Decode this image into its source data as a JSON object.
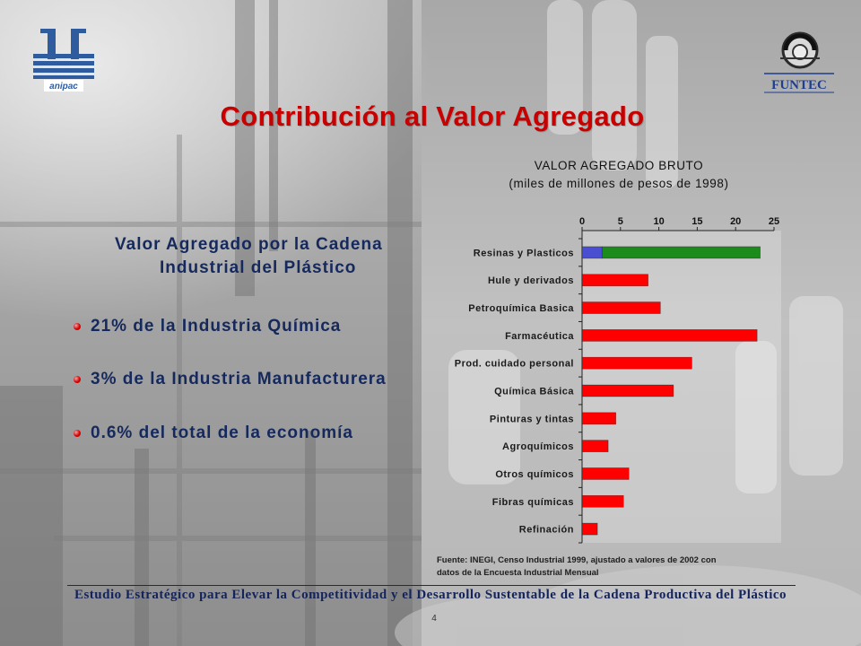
{
  "slide": {
    "title": "Contribución al Valor Agregado",
    "footer": "Estudio Estratégico para Elevar la Competitividad y el Desarrollo Sustentable de la Cadena Productiva del Plástico",
    "page_number": "4"
  },
  "logos": {
    "left": "anipac",
    "right": "FUNTEC"
  },
  "summary": {
    "heading": [
      "Valor Agregado por la Cadena",
      "Industrial del Plástico"
    ],
    "bullets": [
      "21% de la Industria Química",
      "3% de la Industria Manufacturera",
      "0.6% del total de la economía"
    ]
  },
  "colors": {
    "title": "#c80000",
    "text": "#16295c",
    "bullet": "#d40000",
    "footer_text": "#14235a"
  },
  "chart_data": {
    "type": "bar",
    "orientation": "horizontal",
    "stacked": true,
    "title": "VALOR AGREGADO BRUTO",
    "subtitle": "(miles de millones de pesos de 1998)",
    "categories": [
      "Resinas y Plasticos",
      "Hule y derivados",
      "Petroquímica Basica",
      "Farmacéutica",
      "Prod. cuidado personal",
      "Química Básica",
      "Pinturas y tintas",
      "Agroquímicos",
      "Otros químicos",
      "Fibras químicas",
      "Refinación"
    ],
    "series": [
      {
        "color": "#4a4ed0",
        "values": [
          2.6,
          null,
          null,
          null,
          null,
          null,
          null,
          null,
          null,
          null,
          null
        ]
      },
      {
        "color": "#1b8c1b",
        "values": [
          20.6,
          null,
          null,
          null,
          null,
          null,
          null,
          null,
          null,
          null,
          null
        ]
      },
      {
        "color": "#ff0000",
        "values": [
          null,
          8.6,
          10.2,
          22.8,
          14.3,
          11.9,
          4.4,
          3.4,
          6.1,
          5.4,
          2.0
        ]
      }
    ],
    "xlim": [
      0,
      25
    ],
    "xticks": [
      0,
      5,
      10,
      15,
      20,
      25
    ],
    "x_axis_position": "top",
    "grid": false,
    "source": [
      "Fuente: INEGI, Censo Industrial 1999, ajustado a valores de 2002 con",
      "datos de la Encuesta Industrial Mensual"
    ]
  }
}
